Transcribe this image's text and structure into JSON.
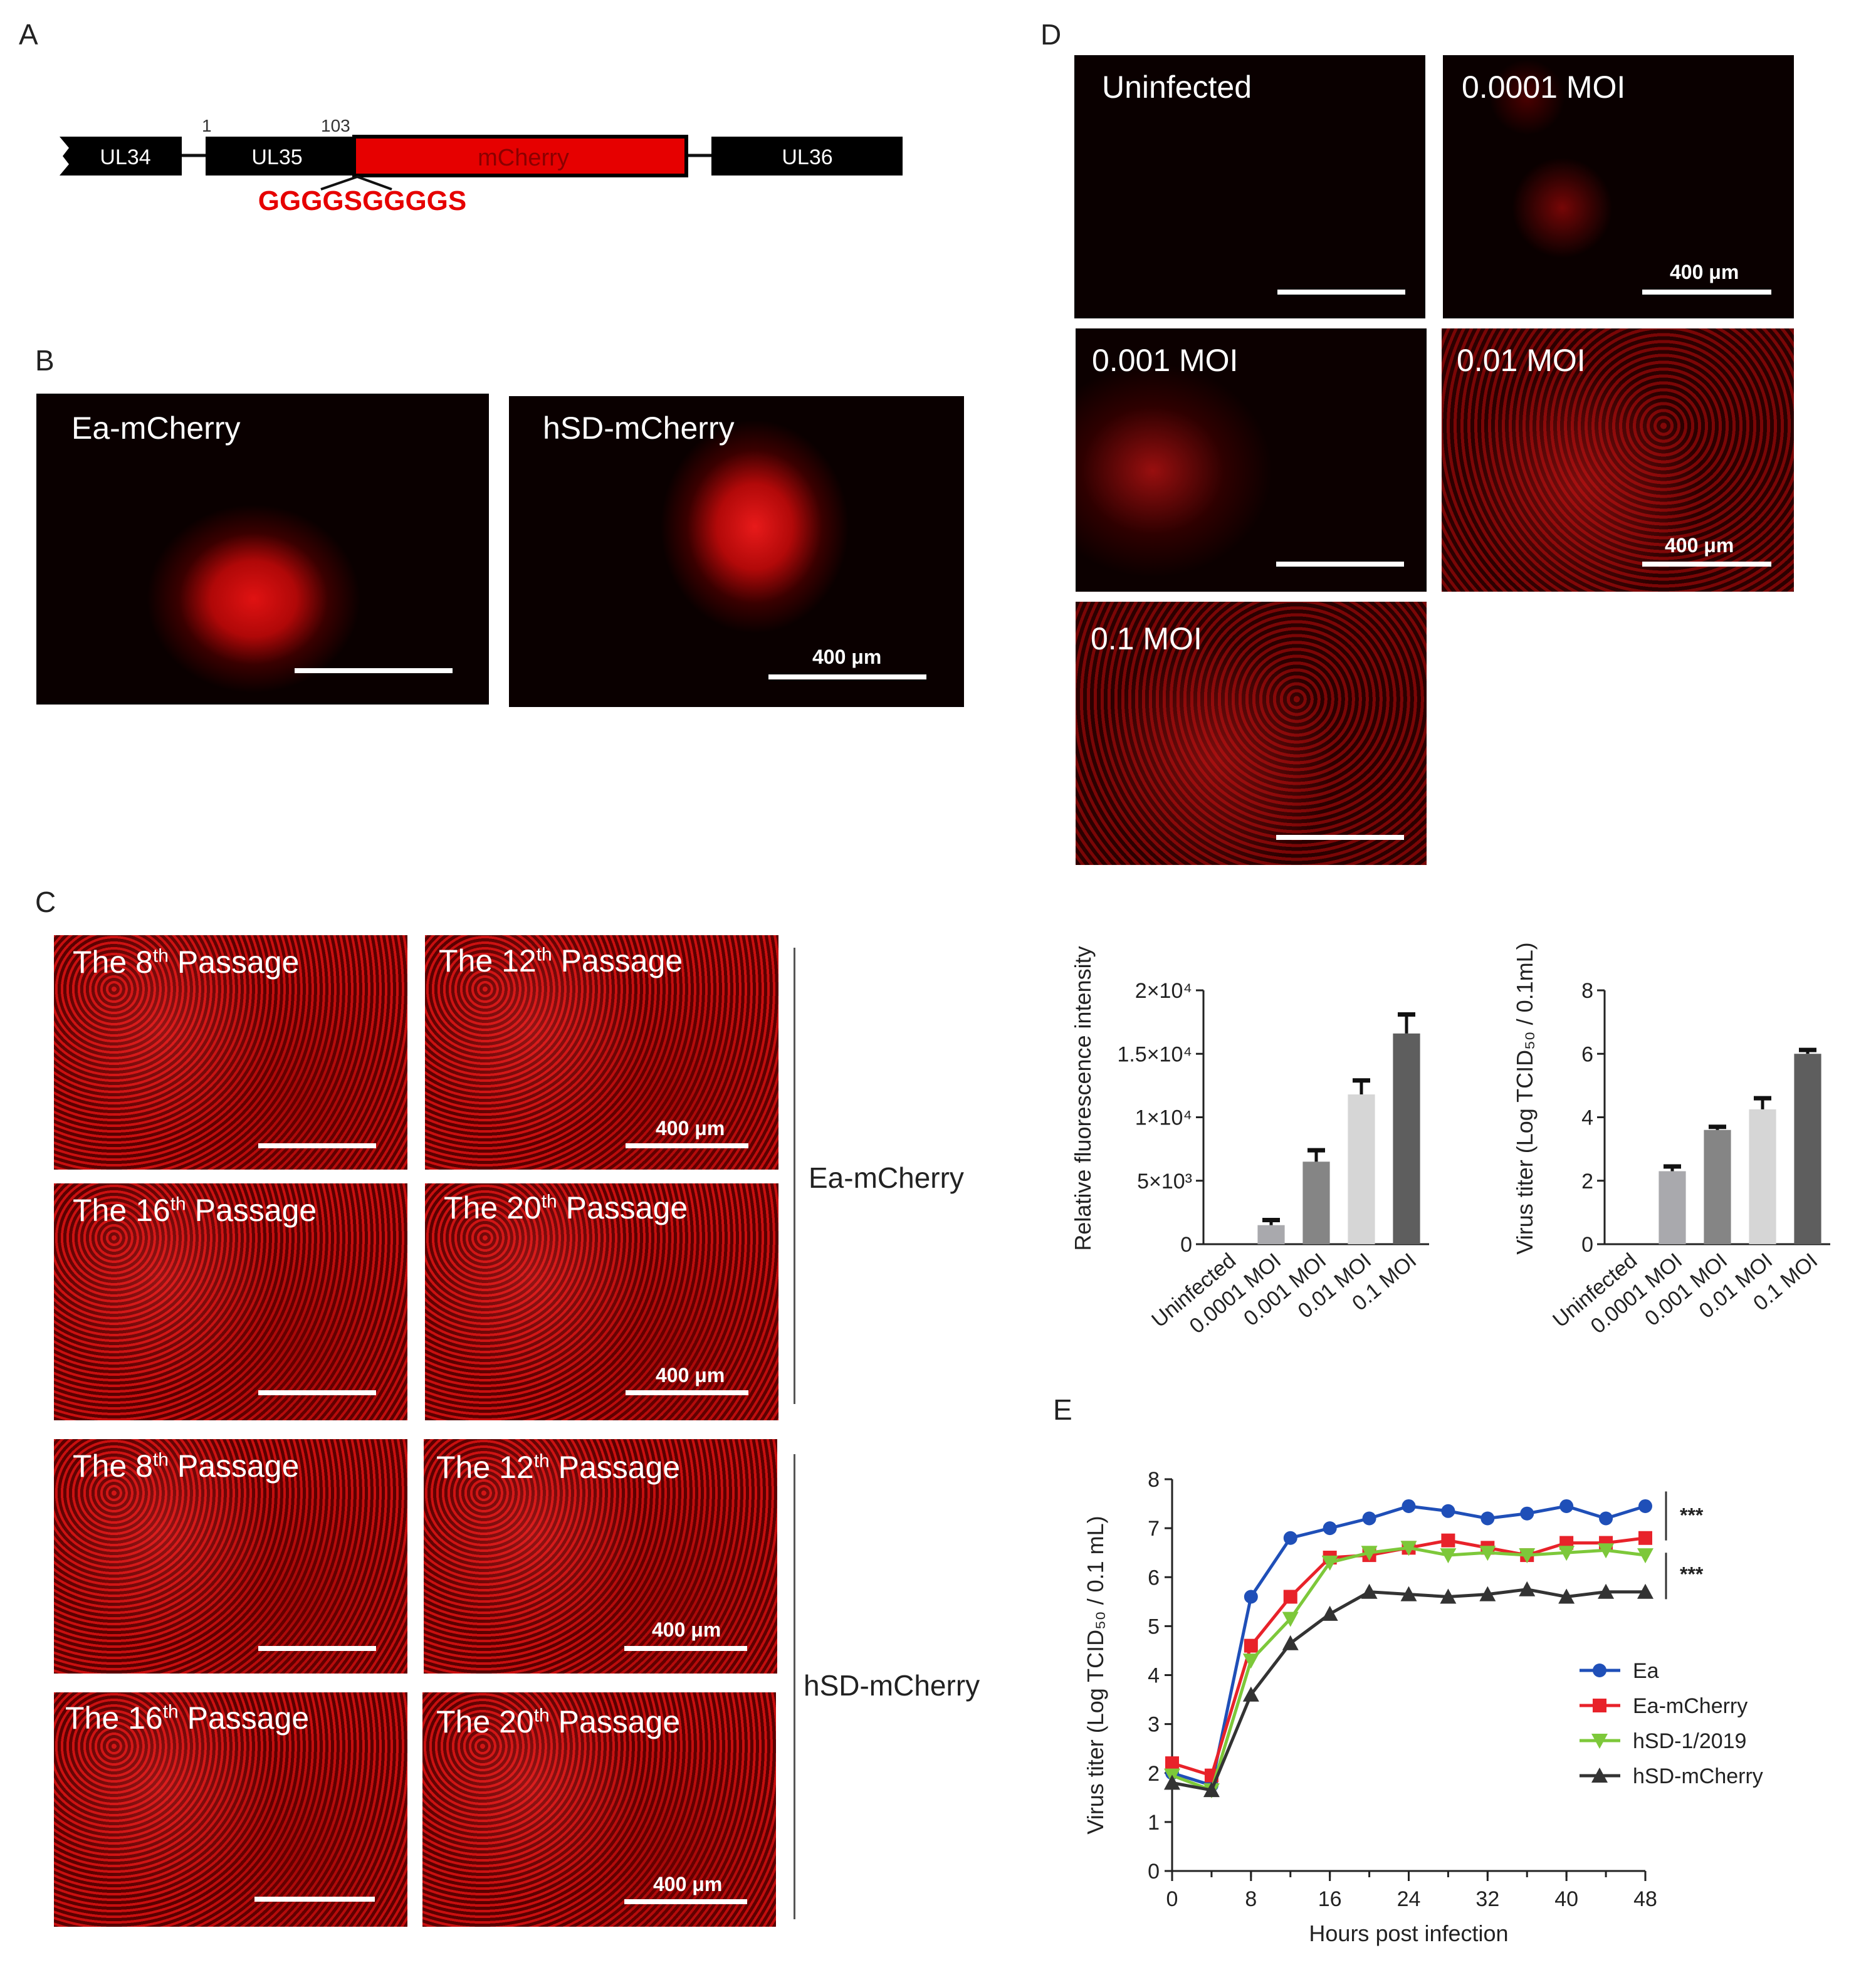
{
  "panels": {
    "A": "A",
    "B": "B",
    "C": "C",
    "D": "D",
    "E": "E"
  },
  "panel_a": {
    "genes": [
      "UL34",
      "UL35",
      "mCherry",
      "UL36"
    ],
    "pos_start": "1",
    "pos_end": "103",
    "linker": "GGGGSGGGGS"
  },
  "panel_b": {
    "images": [
      {
        "label": "Ea-mCherry",
        "scale": ""
      },
      {
        "label": "hSD-mCherry",
        "scale": "400 μm"
      }
    ]
  },
  "panel_c": {
    "passage_word": "Passage",
    "the_word": "The",
    "images": [
      {
        "num": "8",
        "sup": "th",
        "scale": ""
      },
      {
        "num": "12",
        "sup": "th",
        "scale": "400 μm"
      },
      {
        "num": "16",
        "sup": "th",
        "scale": ""
      },
      {
        "num": "20",
        "sup": "th",
        "scale": "400 μm"
      },
      {
        "num": "8",
        "sup": "th",
        "scale": ""
      },
      {
        "num": "12",
        "sup": "th",
        "scale": "400 μm"
      },
      {
        "num": "16",
        "sup": "th",
        "scale": ""
      },
      {
        "num": "20",
        "sup": "th",
        "scale": "400 μm"
      }
    ],
    "groups": [
      "Ea-mCherry",
      "hSD-mCherry"
    ]
  },
  "panel_d": {
    "images": [
      {
        "label": "Uninfected",
        "scale": ""
      },
      {
        "label": "0.0001 MOI",
        "scale": "400 μm"
      },
      {
        "label": "0.001 MOI",
        "scale": ""
      },
      {
        "label": "0.01 MOI",
        "scale": "400 μm"
      },
      {
        "label": "0.1 MOI",
        "scale": ""
      }
    ]
  },
  "chart_data": [
    {
      "type": "bar",
      "ylabel": "Relative fluorescence intensity",
      "categories": [
        "Uninfected",
        "0.0001 MOI",
        "0.001 MOI",
        "0.01 MOI",
        "0.1 MOI"
      ],
      "values": [
        0,
        1500,
        6500,
        11800,
        16600
      ],
      "errors": [
        0,
        400,
        900,
        1100,
        1500
      ],
      "ylim": [
        0,
        20000
      ],
      "yticks": [
        "0",
        "5×10³",
        "1×10⁴",
        "1.5×10⁴",
        "2×10⁴"
      ],
      "ytick_values": [
        0,
        5000,
        10000,
        15000,
        20000
      ],
      "colors": [
        "#b5b5b5",
        "#a9a9ad",
        "#858585",
        "#d6d6d6",
        "#5e5e5e"
      ]
    },
    {
      "type": "bar",
      "ylabel": "Virus titer (Log TCID₅₀ / 0.1mL)",
      "categories": [
        "Uninfected",
        "0.0001 MOI",
        "0.001 MOI",
        "0.01 MOI",
        "0.1 MOI"
      ],
      "values": [
        0,
        2.3,
        3.6,
        4.25,
        6.0
      ],
      "errors": [
        0,
        0.15,
        0.1,
        0.35,
        0.12
      ],
      "ylim": [
        0,
        8
      ],
      "yticks": [
        "0",
        "2",
        "4",
        "6",
        "8"
      ],
      "ytick_values": [
        0,
        2,
        4,
        6,
        8
      ],
      "colors": [
        "#b5b5b5",
        "#a9a9ad",
        "#858585",
        "#d6d6d6",
        "#5e5e5e"
      ]
    },
    {
      "type": "line",
      "xlabel": "Hours post infection",
      "ylabel": "Virus titer (Log TCID₅₀ / 0.1 mL)",
      "x": [
        0,
        4,
        8,
        12,
        16,
        20,
        24,
        28,
        32,
        36,
        40,
        44,
        48
      ],
      "xticks": [
        "0",
        "8",
        "16",
        "24",
        "32",
        "40",
        "48"
      ],
      "xtick_values": [
        0,
        8,
        16,
        24,
        32,
        40,
        48
      ],
      "yticks": [
        "0",
        "1",
        "2",
        "3",
        "4",
        "5",
        "6",
        "7",
        "8"
      ],
      "xlim": [
        0,
        48
      ],
      "ylim": [
        0,
        8
      ],
      "series": [
        {
          "name": "Ea",
          "color": "#1f4fb8",
          "marker": "circle",
          "values": [
            2.0,
            1.75,
            5.6,
            6.8,
            7.0,
            7.2,
            7.45,
            7.35,
            7.2,
            7.3,
            7.45,
            7.2,
            7.45
          ]
        },
        {
          "name": "Ea-mCherry",
          "color": "#e8222a",
          "marker": "square",
          "values": [
            2.2,
            1.95,
            4.6,
            5.6,
            6.4,
            6.45,
            6.6,
            6.75,
            6.6,
            6.45,
            6.7,
            6.7,
            6.8
          ]
        },
        {
          "name": "hSD-1/2019",
          "color": "#7dc83a",
          "marker": "triangle-down",
          "values": [
            1.95,
            1.65,
            4.3,
            5.15,
            6.3,
            6.5,
            6.6,
            6.45,
            6.5,
            6.45,
            6.5,
            6.55,
            6.45
          ]
        },
        {
          "name": "hSD-mCherry",
          "color": "#333333",
          "marker": "triangle-up",
          "values": [
            1.8,
            1.65,
            3.6,
            4.65,
            5.25,
            5.7,
            5.65,
            5.6,
            5.65,
            5.75,
            5.6,
            5.7,
            5.7
          ]
        }
      ],
      "annotations": [
        "***",
        "***"
      ]
    }
  ]
}
